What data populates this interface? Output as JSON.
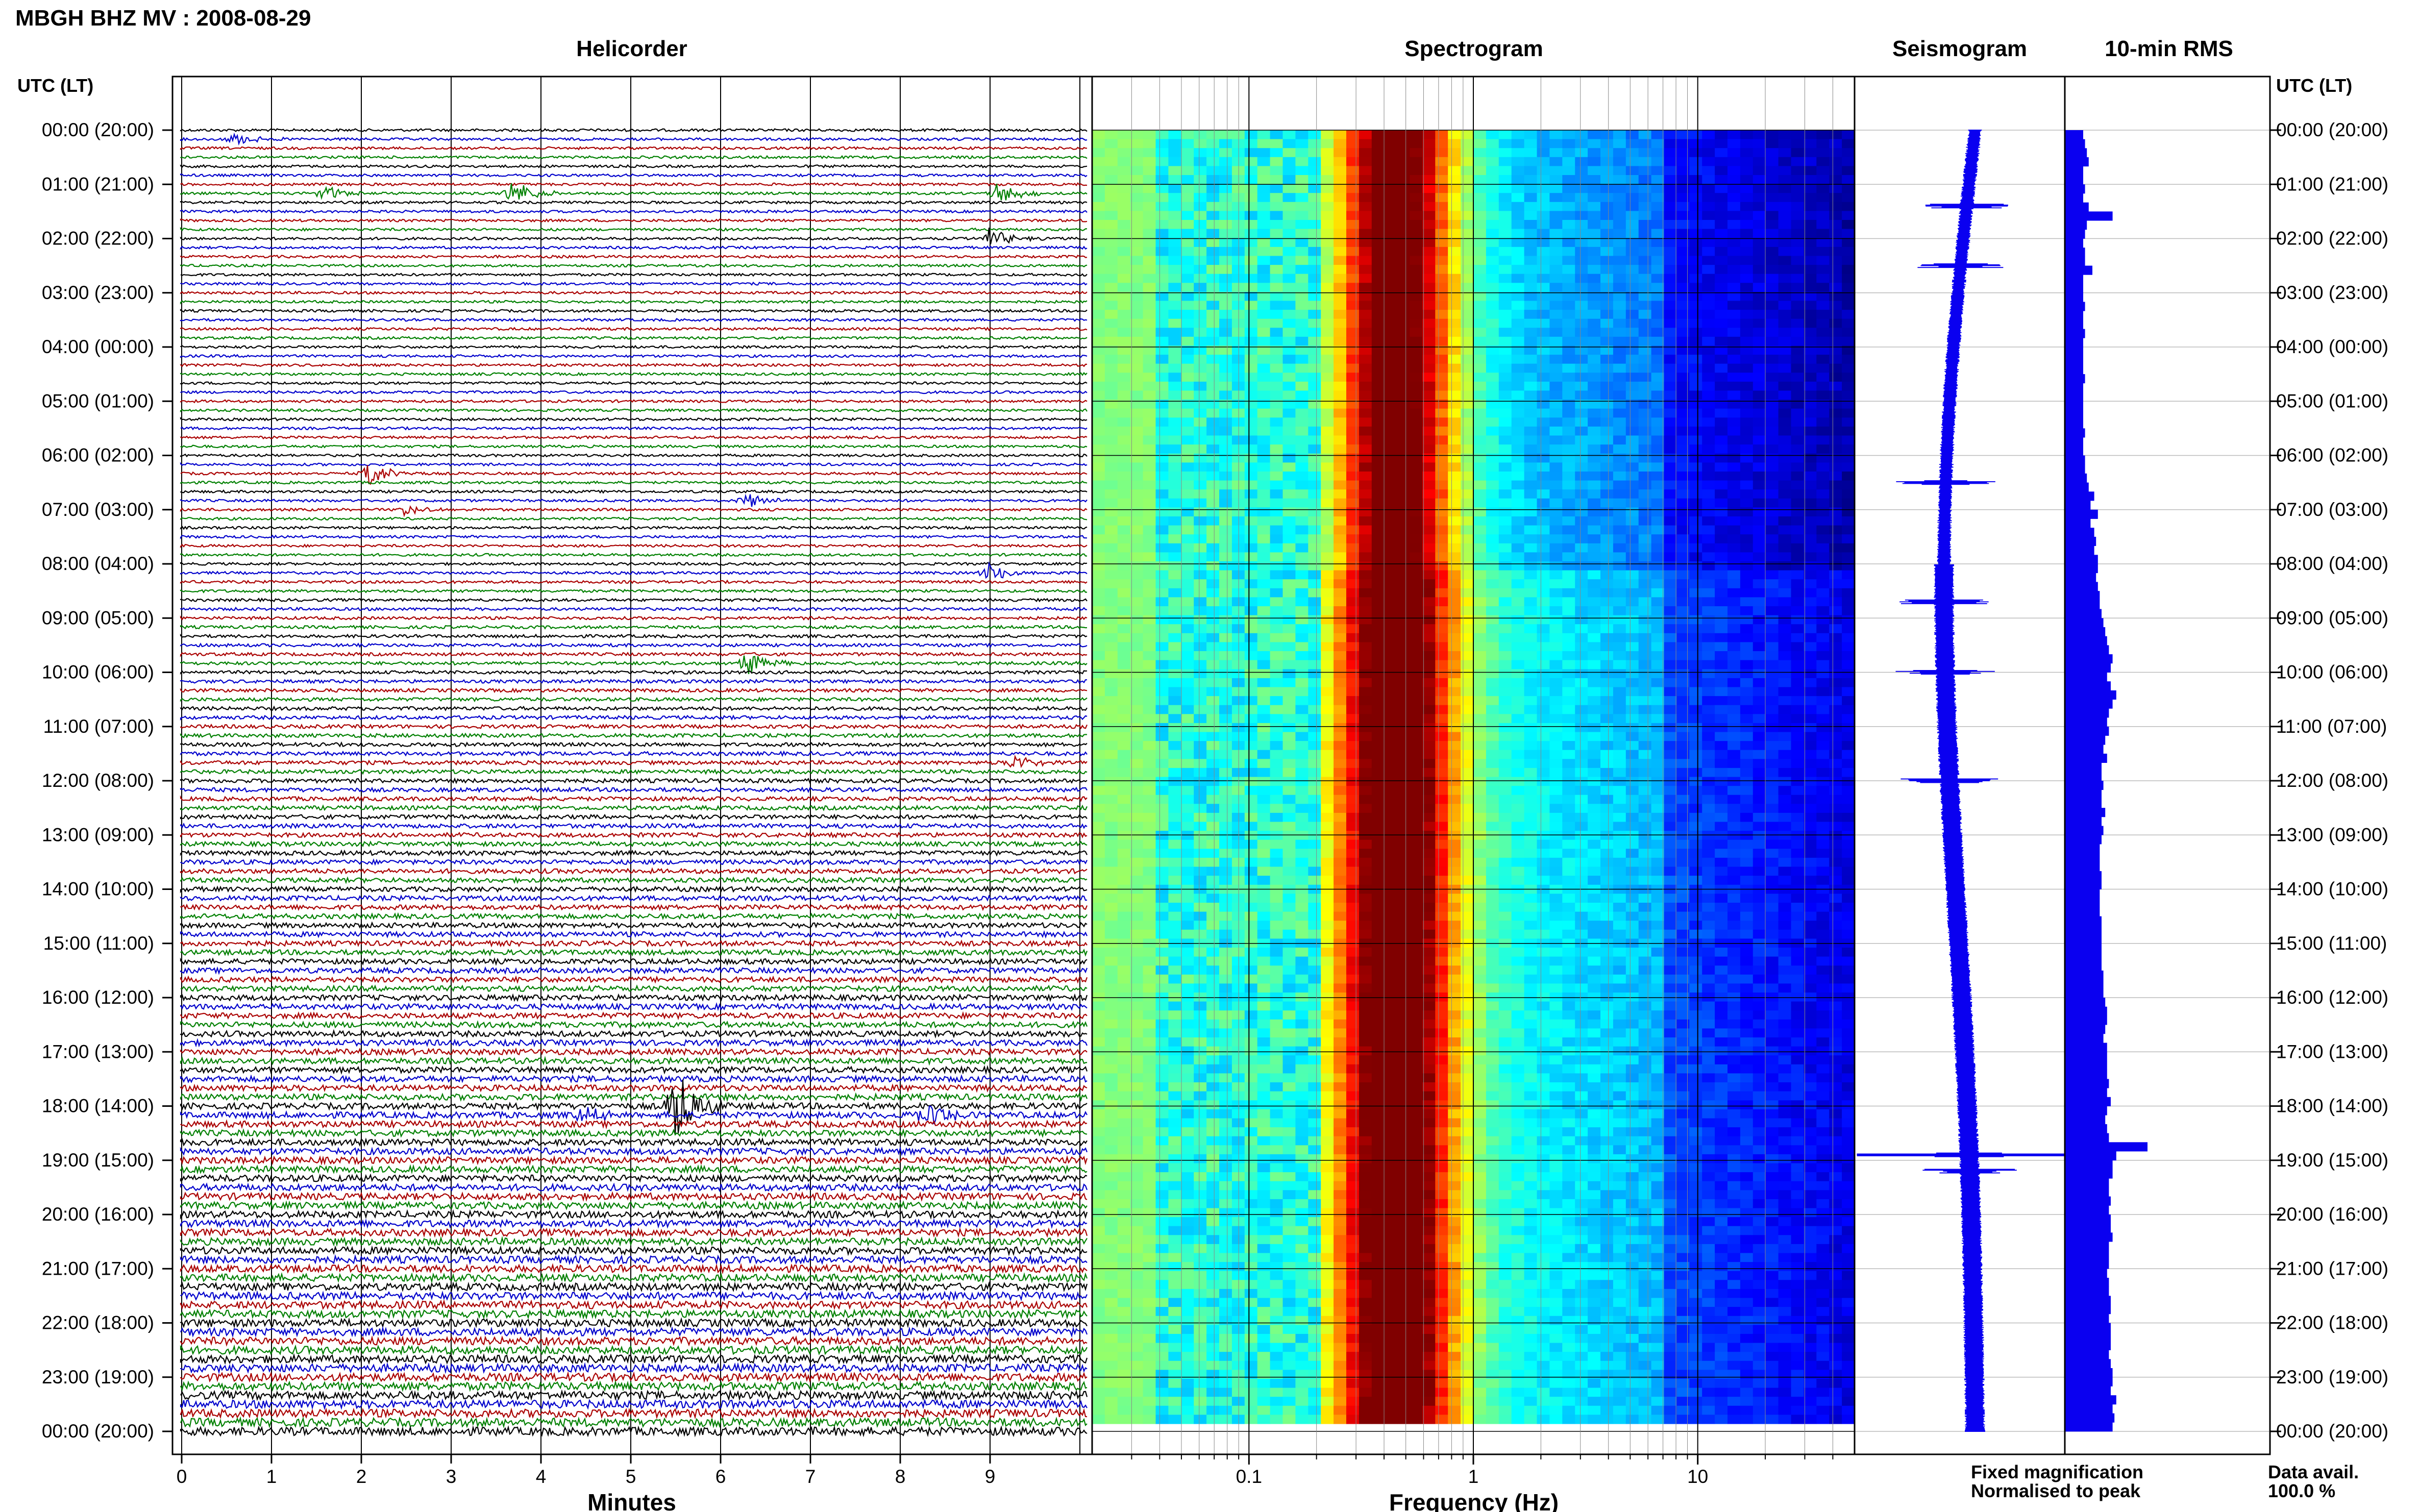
{
  "header": {
    "station_title": "MBGH BHZ MV : 2008-08-29",
    "panel_titles": {
      "helicorder": "Helicorder",
      "spectrogram": "Spectrogram",
      "seismogram": "Seismogram",
      "rms": "10-min RMS"
    },
    "left_axis_heading": "UTC (LT)",
    "right_axis_heading": "UTC (LT)"
  },
  "time_labels": [
    "00:00 (20:00)",
    "01:00 (21:00)",
    "02:00 (22:00)",
    "03:00 (23:00)",
    "04:00 (00:00)",
    "05:00 (01:00)",
    "06:00 (02:00)",
    "07:00 (03:00)",
    "08:00 (04:00)",
    "09:00 (05:00)",
    "10:00 (06:00)",
    "11:00 (07:00)",
    "12:00 (08:00)",
    "13:00 (09:00)",
    "14:00 (10:00)",
    "15:00 (11:00)",
    "16:00 (12:00)",
    "17:00 (13:00)",
    "18:00 (14:00)",
    "19:00 (15:00)",
    "20:00 (16:00)",
    "21:00 (17:00)",
    "22:00 (18:00)",
    "23:00 (19:00)",
    "00:00 (20:00)"
  ],
  "x_axes": {
    "helicorder": {
      "label": "Minutes",
      "ticks": [
        "0",
        "1",
        "2",
        "3",
        "4",
        "5",
        "6",
        "7",
        "8",
        "9"
      ],
      "range": [
        0,
        10
      ]
    },
    "spectrogram": {
      "label": "Frequency (Hz)",
      "ticks": [
        "0.1",
        "1",
        "10"
      ],
      "range": [
        0.02,
        50
      ],
      "scale": "log"
    }
  },
  "legend": {
    "fixed_magnification": "Fixed magnification",
    "normalised_to_peak": "Normalised to peak",
    "fixed_color": "#1515ff",
    "normalised_color": "#ff1010"
  },
  "data_availability": {
    "label": "Data avail.",
    "value": "100.0 %"
  },
  "colors": {
    "trace_cycle": [
      "#000000",
      "#0000cc",
      "#aa0000",
      "#008000"
    ],
    "rms_bar": "#0a00f0",
    "seismogram": "#0a00f0"
  },
  "chart_data": [
    {
      "type": "line",
      "name": "helicorder",
      "rows_per_hour": 6,
      "hours": 24,
      "x_unit": "minutes",
      "events": [
        {
          "hour": 0,
          "row": 1,
          "minute": 0.6,
          "amp": 0.4
        },
        {
          "hour": 1,
          "row": 1,
          "minute": 1.6,
          "amp": 0.5
        },
        {
          "hour": 1,
          "row": 1,
          "minute": 3.7,
          "amp": 0.9
        },
        {
          "hour": 1,
          "row": 1,
          "minute": 9.1,
          "amp": 0.8
        },
        {
          "hour": 2,
          "row": 0,
          "minute": 9.0,
          "amp": 0.7
        },
        {
          "hour": 6,
          "row": 2,
          "minute": 2.1,
          "amp": 0.8
        },
        {
          "hour": 7,
          "row": 0,
          "minute": 2.5,
          "amp": 0.4
        },
        {
          "hour": 6,
          "row": 5,
          "minute": 6.3,
          "amp": 0.5
        },
        {
          "hour": 8,
          "row": 1,
          "minute": 9.0,
          "amp": 0.7
        },
        {
          "hour": 9,
          "row": 5,
          "minute": 6.3,
          "amp": 0.8
        },
        {
          "hour": 11,
          "row": 4,
          "minute": 9.3,
          "amp": 0.5
        },
        {
          "hour": 18,
          "row": 0,
          "minute": 5.5,
          "amp": 2.6
        },
        {
          "hour": 18,
          "row": 1,
          "minute": 4.5,
          "amp": 0.6
        },
        {
          "hour": 18,
          "row": 1,
          "minute": 8.3,
          "amp": 0.9
        }
      ]
    },
    {
      "type": "heatmap",
      "name": "spectrogram",
      "x_unit": "Hz",
      "xlim": [
        0.02,
        50
      ],
      "peak_frequency_hz": 0.45,
      "rows": 144
    },
    {
      "type": "line",
      "name": "seismogram",
      "x_unit": "hours",
      "spikes_at_hours": [
        1.4,
        2.5,
        6.5,
        8.7,
        10.0,
        12.0,
        18.9,
        19.2
      ]
    },
    {
      "type": "bar",
      "name": "10-min RMS",
      "orientation": "horizontal",
      "values_per_hour": [
        [
          1.0,
          1.1,
          1.2,
          1.3,
          1.0,
          1.0
        ],
        [
          1.1,
          1.0,
          1.3,
          2.6,
          1.2,
          1.1
        ],
        [
          1.0,
          1.1,
          1.1,
          1.5,
          1.0,
          1.0
        ],
        [
          1.0,
          1.1,
          1.0,
          1.0,
          1.1,
          1.0
        ],
        [
          1.0,
          1.0,
          1.0,
          1.1,
          1.0,
          1.0
        ],
        [
          1.0,
          1.0,
          1.0,
          1.1,
          1.0,
          1.0
        ],
        [
          1.1,
          1.1,
          1.2,
          1.3,
          1.6,
          1.4
        ],
        [
          1.8,
          1.4,
          1.6,
          1.7,
          1.6,
          1.8
        ],
        [
          1.8,
          1.7,
          1.8,
          1.9,
          1.9,
          2.0
        ],
        [
          2.1,
          2.2,
          2.3,
          2.4,
          2.6,
          2.5
        ],
        [
          2.3,
          2.5,
          2.8,
          2.6,
          2.4,
          2.3
        ],
        [
          2.4,
          2.2,
          2.1,
          2.3,
          2.0,
          2.0
        ],
        [
          2.1,
          2.0,
          2.0,
          2.2,
          2.0,
          2.1
        ],
        [
          2.0,
          1.9,
          1.9,
          1.9,
          2.0,
          2.0
        ],
        [
          1.9,
          1.9,
          1.9,
          2.0,
          2.0,
          2.0
        ],
        [
          2.0,
          2.0,
          2.0,
          2.1,
          2.1,
          2.1
        ],
        [
          2.2,
          2.3,
          2.3,
          2.2,
          2.1,
          2.3
        ],
        [
          2.3,
          2.3,
          2.3,
          2.4,
          2.3,
          2.5
        ],
        [
          2.3,
          2.2,
          2.3,
          2.4,
          4.5,
          2.8
        ],
        [
          2.6,
          2.6,
          2.4,
          2.4,
          2.5,
          2.4
        ],
        [
          2.5,
          2.5,
          2.6,
          2.4,
          2.4,
          2.4
        ],
        [
          2.3,
          2.4,
          2.4,
          2.5,
          2.5,
          2.4
        ],
        [
          2.5,
          2.5,
          2.5,
          2.4,
          2.5,
          2.6
        ],
        [
          2.6,
          2.5,
          2.8,
          2.6,
          2.7,
          2.6
        ]
      ]
    }
  ]
}
